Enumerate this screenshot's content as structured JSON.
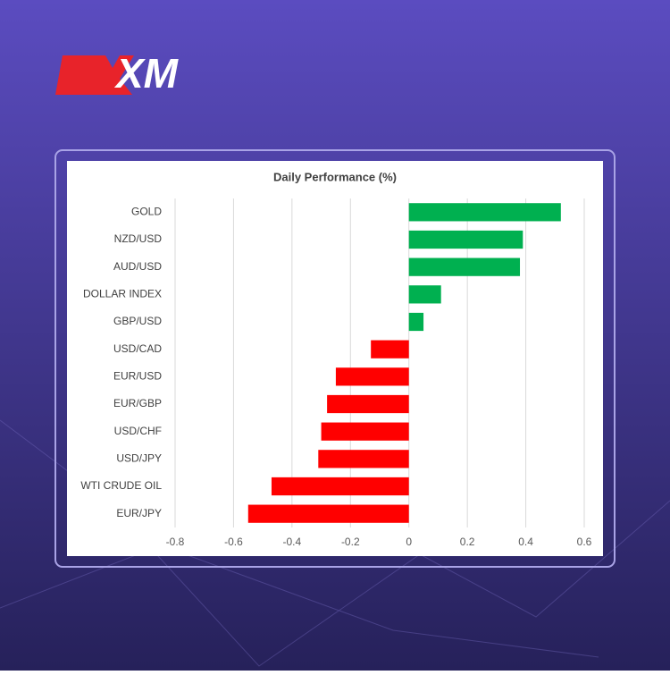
{
  "brand": "XM",
  "chart_data": {
    "type": "bar",
    "orientation": "horizontal",
    "title": "Daily Performance (%)",
    "categories": [
      "GOLD",
      "NZD/USD",
      "AUD/USD",
      "DOLLAR INDEX",
      "GBP/USD",
      "USD/CAD",
      "EUR/USD",
      "EUR/GBP",
      "USD/CHF",
      "USD/JPY",
      "WTI CRUDE OIL",
      "EUR/JPY"
    ],
    "values": [
      0.52,
      0.39,
      0.38,
      0.11,
      0.05,
      -0.13,
      -0.25,
      -0.28,
      -0.3,
      -0.31,
      -0.47,
      -0.55
    ],
    "positive_color": "#00b050",
    "negative_color": "#ff0000",
    "xlim": [
      -0.8,
      0.6
    ],
    "xticks": [
      -0.8,
      -0.6,
      -0.4,
      -0.2,
      0,
      0.2,
      0.4,
      0.6
    ],
    "grid": true
  }
}
